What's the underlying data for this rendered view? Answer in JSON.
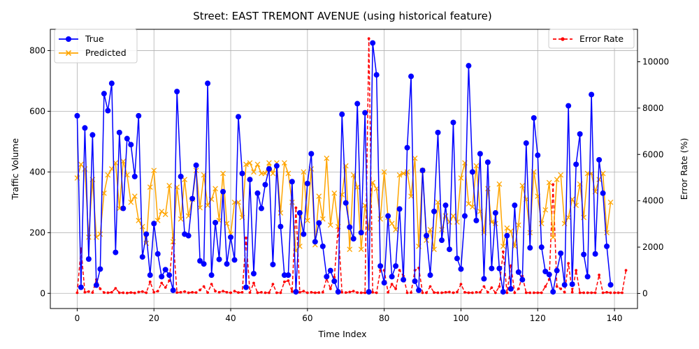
{
  "chart_data": {
    "type": "line",
    "title": "Street: EAST TREMONT AVENUE (using historical feature)",
    "xlabel": "Time Index",
    "ylabel": "Traffic Volume",
    "y2label": "Error Rate (%)",
    "xlim": [
      -7,
      146
    ],
    "ylim": [
      -50,
      870
    ],
    "y2lim": [
      -650,
      11400
    ],
    "x_ticks": [
      "0",
      "20",
      "40",
      "60",
      "80",
      "100",
      "120",
      "140"
    ],
    "y_ticks": [
      "0",
      "200",
      "400",
      "600",
      "800"
    ],
    "y2_ticks": [
      "0",
      "2000",
      "4000",
      "6000",
      "8000",
      "10000"
    ],
    "grid": true,
    "legend_left": "upper-left",
    "legend_right": "upper-right",
    "colors": {
      "true": "#0000ff",
      "predicted": "#ffa500",
      "error": "#ff0000"
    },
    "series": [
      {
        "name": "True",
        "values": [
          585,
          20,
          545,
          113,
          522,
          27,
          80,
          658,
          602,
          692,
          135,
          530,
          280,
          510,
          490,
          385,
          585,
          120,
          195,
          60,
          230,
          130,
          55,
          78,
          60,
          10,
          665,
          385,
          195,
          190,
          312,
          422,
          107,
          97,
          692,
          60,
          233,
          112,
          335,
          97,
          185,
          110,
          582,
          395,
          20,
          375,
          65,
          330,
          280,
          358,
          410,
          95,
          420,
          220,
          60,
          60,
          368,
          5,
          265,
          195,
          362,
          460,
          170,
          232,
          155,
          55,
          75,
          40,
          5,
          590,
          298,
          218,
          180,
          625,
          200,
          595,
          5,
          825,
          720,
          90,
          35,
          255,
          55,
          90,
          278,
          45,
          480,
          715,
          40,
          10,
          405,
          190,
          60,
          270,
          530,
          175,
          290,
          145,
          563,
          115,
          80,
          255,
          750,
          400,
          240,
          460,
          48,
          432,
          82,
          265,
          82,
          5,
          190,
          15,
          290,
          70,
          45,
          495,
          150,
          578,
          455,
          152,
          72,
          62,
          5,
          75,
          132,
          28,
          618,
          30,
          425,
          525,
          128,
          55,
          655,
          130,
          440,
          330,
          155,
          28
        ]
      },
      {
        "name": "Predicted",
        "values": [
          380,
          425,
          410,
          185,
          375,
          185,
          195,
          330,
          390,
          410,
          430,
          280,
          435,
          390,
          300,
          320,
          240,
          220,
          165,
          350,
          405,
          240,
          270,
          260,
          355,
          170,
          350,
          245,
          375,
          255,
          310,
          405,
          282,
          390,
          290,
          310,
          345,
          240,
          395,
          230,
          195,
          300,
          300,
          250,
          425,
          430,
          400,
          425,
          395,
          395,
          430,
          395,
          430,
          265,
          430,
          395,
          300,
          140,
          155,
          400,
          240,
          410,
          160,
          320,
          245,
          445,
          225,
          330,
          220,
          325,
          420,
          145,
          390,
          350,
          145,
          290,
          210,
          365,
          345,
          245,
          400,
          250,
          230,
          210,
          390,
          395,
          400,
          320,
          445,
          155,
          405,
          175,
          210,
          145,
          300,
          210,
          255,
          235,
          255,
          235,
          380,
          430,
          295,
          285,
          420,
          270,
          200,
          345,
          235,
          230,
          360,
          155,
          215,
          205,
          155,
          225,
          355,
          310,
          200,
          400,
          320,
          230,
          275,
          365,
          185,
          375,
          390,
          230,
          250,
          310,
          290,
          360,
          250,
          395,
          395,
          335,
          375,
          395,
          200,
          300
        ]
      },
      {
        "name": "Error Rate",
        "values": [
          30,
          1930,
          50,
          80,
          40,
          600,
          200,
          40,
          30,
          50,
          220,
          30,
          30,
          20,
          40,
          20,
          60,
          80,
          30,
          500,
          50,
          100,
          450,
          260,
          550,
          2400,
          40,
          50,
          80,
          30,
          50,
          40,
          150,
          300,
          40,
          400,
          100,
          50,
          100,
          50,
          30,
          100,
          40,
          50,
          2400,
          40,
          450,
          30,
          50,
          30,
          30,
          400,
          30,
          30,
          500,
          550,
          80,
          3700,
          50,
          100,
          30,
          50,
          30,
          40,
          50,
          650,
          200,
          700,
          2850,
          50,
          40,
          60,
          100,
          40,
          30,
          30,
          11000,
          50,
          30,
          1000,
          1000,
          50,
          400,
          200,
          1000,
          750,
          30,
          40,
          1000,
          1100,
          30,
          30,
          300,
          40,
          30,
          30,
          50,
          60,
          30,
          60,
          400,
          50,
          30,
          30,
          50,
          50,
          300,
          50,
          250,
          30,
          300,
          1800,
          30,
          1200,
          30,
          200,
          750,
          30,
          30,
          30,
          30,
          30,
          300,
          600,
          4700,
          300,
          200,
          50,
          1300,
          50,
          1000,
          30,
          30,
          30,
          30,
          30,
          800,
          30,
          50,
          30,
          30,
          30,
          30,
          1000
        ]
      }
    ]
  }
}
